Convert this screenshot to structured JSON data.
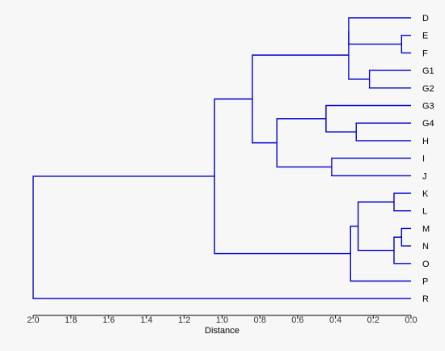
{
  "chart_data": {
    "type": "dendrogram",
    "orientation": "right-to-left",
    "xlabel": "Distance",
    "xlim": [
      2.0,
      0.0
    ],
    "ticks": [
      "2.0",
      "1.8",
      "1.6",
      "1.4",
      "1.2",
      "1.0",
      "0.8",
      "0.6",
      "0.4",
      "0.2",
      "0.0"
    ],
    "tick_values": [
      2.0,
      1.8,
      1.6,
      1.4,
      1.2,
      1.0,
      0.8,
      0.6,
      0.4,
      0.2,
      0.0
    ],
    "line_color": "#0000cc",
    "leaves": [
      "D",
      "E",
      "F",
      "G1",
      "G2",
      "G3",
      "G4",
      "H",
      "I",
      "J",
      "K",
      "L",
      "M",
      "N",
      "O",
      "P",
      "R"
    ],
    "merges": [
      {
        "a": "E",
        "b": "F",
        "height": 0.05
      },
      {
        "a": "D",
        "b": "E+F",
        "height": 0.33
      },
      {
        "a": "G1",
        "b": "G2",
        "height": 0.22
      },
      {
        "a": "D+E+F",
        "b": "G1+G2",
        "height": 0.33
      },
      {
        "a": "G4",
        "b": "H",
        "height": 0.29
      },
      {
        "a": "G3",
        "b": "G4+H",
        "height": 0.45
      },
      {
        "a": "I",
        "b": "J",
        "height": 0.42
      },
      {
        "a": "G3+G4+H",
        "b": "I+J",
        "height": 0.71
      },
      {
        "a": "D..G2",
        "b": "G3..J",
        "height": 0.84
      },
      {
        "a": "K",
        "b": "L",
        "height": 0.09
      },
      {
        "a": "M",
        "b": "N",
        "height": 0.05
      },
      {
        "a": "M+N",
        "b": "O",
        "height": 0.09
      },
      {
        "a": "K+L",
        "b": "M+N+O",
        "height": 0.28
      },
      {
        "a": "K..O",
        "b": "P",
        "height": 0.32
      },
      {
        "a": "D..J",
        "b": "K..P",
        "height": 1.04
      },
      {
        "a": "D..P",
        "b": "R",
        "height": 2.0
      }
    ]
  }
}
